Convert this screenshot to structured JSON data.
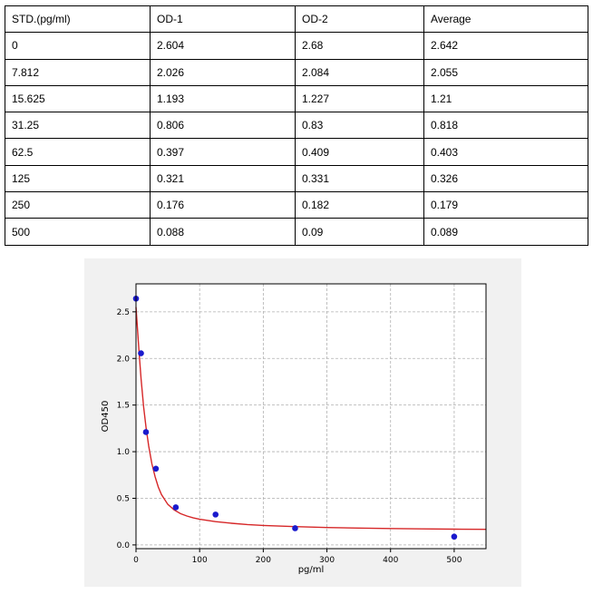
{
  "table": {
    "headers": [
      "STD.(pg/ml)",
      "OD-1",
      "OD-2",
      "Average"
    ],
    "rows": [
      [
        "0",
        "2.604",
        "2.68",
        "2.642"
      ],
      [
        "7.812",
        "2.026",
        "2.084",
        "2.055"
      ],
      [
        "15.625",
        "1.193",
        "1.227",
        "1.21"
      ],
      [
        "31.25",
        "0.806",
        "0.83",
        "0.818"
      ],
      [
        "62.5",
        "0.397",
        "0.409",
        "0.403"
      ],
      [
        "125",
        "0.321",
        "0.331",
        "0.326"
      ],
      [
        "250",
        "0.176",
        "0.182",
        "0.179"
      ],
      [
        "500",
        "0.088",
        "0.09",
        "0.089"
      ]
    ]
  },
  "chart_data": {
    "type": "scatter",
    "xlabel": "pg/ml",
    "ylabel": "OD450",
    "xlim": [
      0,
      550
    ],
    "ylim": [
      -0.04,
      2.8
    ],
    "xticks": [
      0,
      100,
      200,
      300,
      400,
      500
    ],
    "yticks": [
      0.0,
      0.5,
      1.0,
      1.5,
      2.0,
      2.5
    ],
    "xtick_labels": [
      "0",
      "100",
      "200",
      "300",
      "400",
      "500"
    ],
    "ytick_labels": [
      "0.0",
      "0.5",
      "1.0",
      "1.5",
      "2.0",
      "2.5"
    ],
    "grid": true,
    "points": {
      "x": [
        0,
        7.812,
        15.625,
        31.25,
        62.5,
        125,
        250,
        500
      ],
      "y": [
        2.642,
        2.055,
        1.21,
        0.818,
        0.403,
        0.326,
        0.179,
        0.089
      ],
      "color": "#1a1acd"
    },
    "fit_curve": {
      "x": [
        0,
        2,
        5,
        8,
        12,
        16,
        20,
        25,
        30,
        35,
        40,
        50,
        60,
        70,
        80,
        90,
        100,
        125,
        150,
        175,
        200,
        250,
        300,
        350,
        400,
        450,
        500,
        550
      ],
      "y": [
        2.55,
        2.35,
        2.05,
        1.78,
        1.48,
        1.25,
        1.06,
        0.87,
        0.73,
        0.62,
        0.54,
        0.435,
        0.375,
        0.335,
        0.31,
        0.29,
        0.275,
        0.25,
        0.232,
        0.219,
        0.209,
        0.196,
        0.187,
        0.181,
        0.176,
        0.172,
        0.169,
        0.167
      ],
      "color": "#d62728"
    }
  }
}
